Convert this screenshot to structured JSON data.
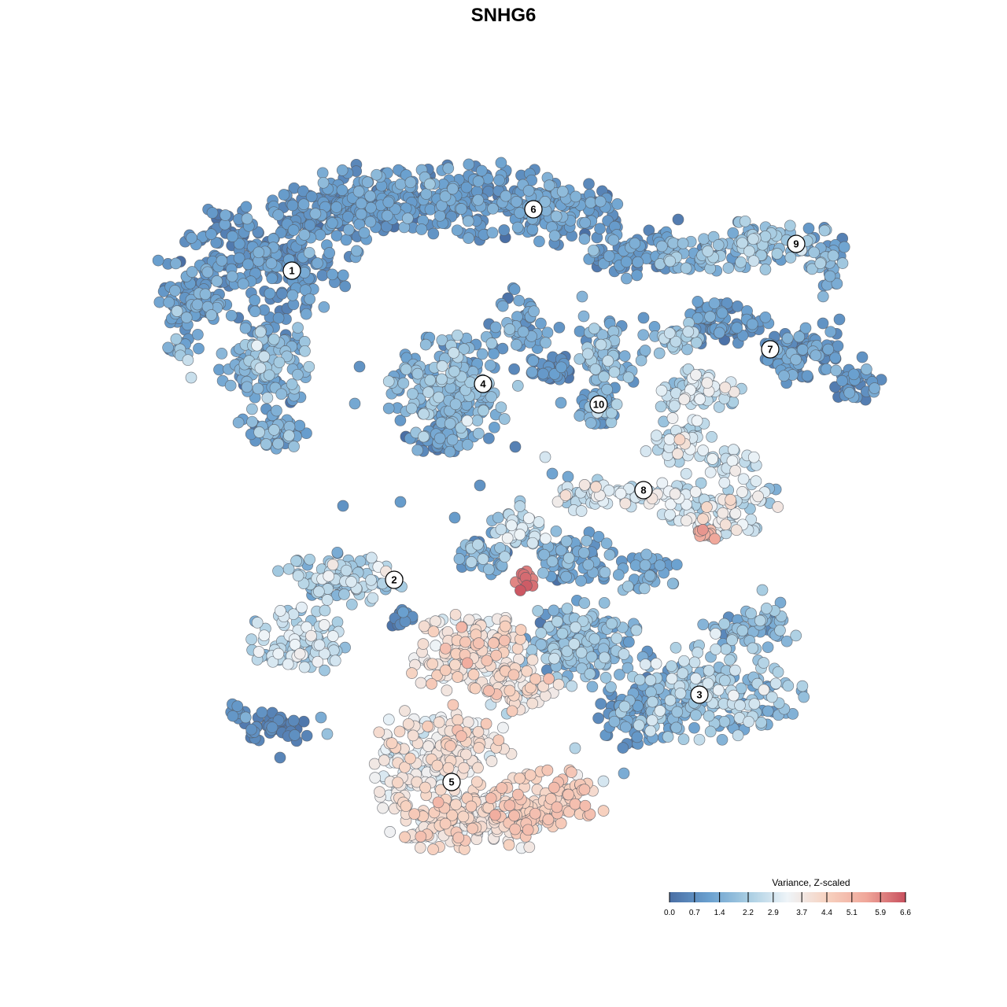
{
  "chart_data": {
    "type": "scatter",
    "title": "SNHG6",
    "legend": {
      "title": "Variance, Z-scaled",
      "placement": "bottom-right",
      "ticks": [
        "0.0",
        "0.7",
        "1.4",
        "2.2",
        "2.9",
        "3.7",
        "4.4",
        "5.1",
        "5.9",
        "6.6"
      ],
      "range": [
        0.0,
        6.6
      ],
      "colors": [
        "#4a6fa5",
        "#6aa0cf",
        "#a8cde2",
        "#eef4f8",
        "#f7d2c0",
        "#f0a79a",
        "#c8505e"
      ]
    },
    "axes_visible": false,
    "grid": false,
    "clusters": [
      {
        "label": "1",
        "mean_value": 0.9
      },
      {
        "label": "2",
        "mean_value": 1.9
      },
      {
        "label": "3",
        "mean_value": 1.8
      },
      {
        "label": "4",
        "mean_value": 1.5
      },
      {
        "label": "5",
        "mean_value": 3.7
      },
      {
        "label": "6",
        "mean_value": 0.9
      },
      {
        "label": "7",
        "mean_value": 0.8
      },
      {
        "label": "8",
        "mean_value": 2.6
      },
      {
        "label": "9",
        "mean_value": 1.6
      },
      {
        "label": "10",
        "mean_value": 1.6
      }
    ]
  }
}
